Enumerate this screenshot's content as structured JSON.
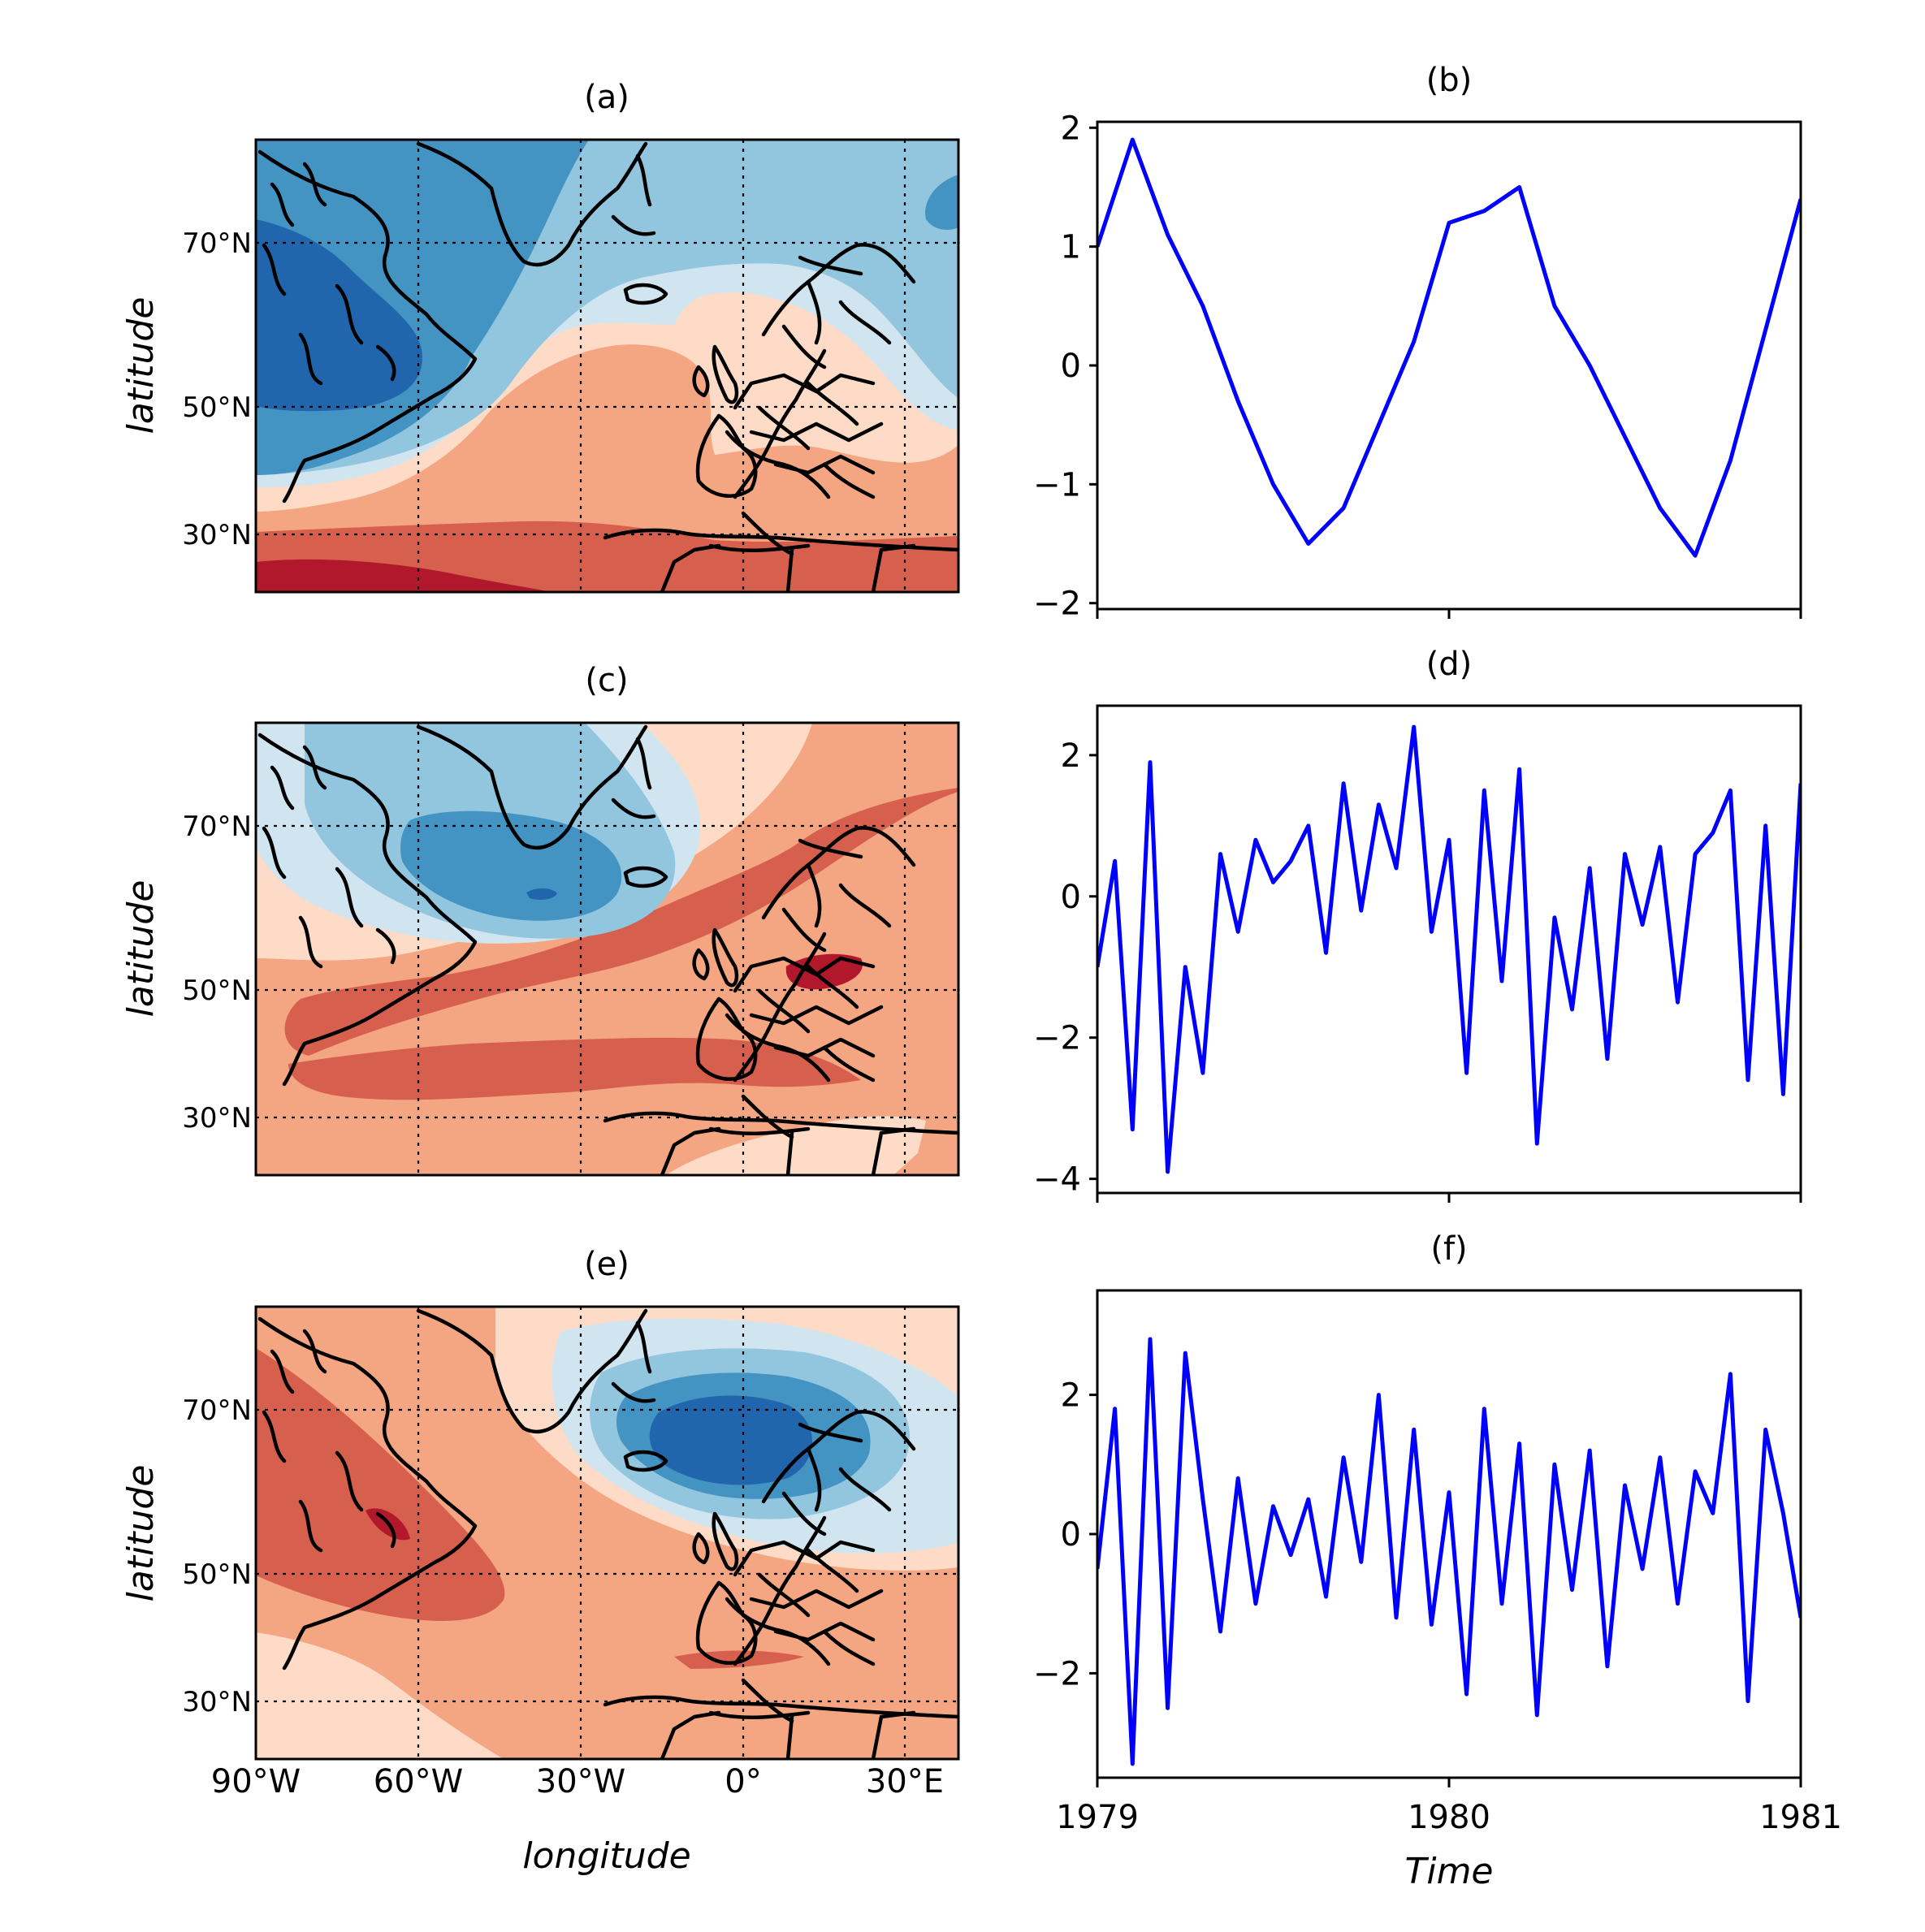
{
  "colors": {
    "series": "#0000ff",
    "diverging_scale": [
      "#08306b",
      "#2166ac",
      "#4393c3",
      "#92c5de",
      "#d1e5f0",
      "#fddbc7",
      "#f4a582",
      "#d6604d",
      "#b2182b",
      "#67001f"
    ]
  },
  "map_axes": {
    "xticks": [
      "90°W",
      "60°W",
      "30°W",
      "0°",
      "30°E"
    ],
    "yticks": [
      "70°N",
      "50°N",
      "30°N"
    ],
    "xlabel": "longitude",
    "ylabel": "latitude",
    "extent": {
      "lon": [
        -90,
        40
      ],
      "lat": [
        20,
        83
      ]
    }
  },
  "chart_data": [
    {
      "type": "heatmap",
      "title": "(a)",
      "pattern": "blue over Canada, Greenland, Labrador Sea and Scandinavia; red over subtropical Atlantic",
      "color_scale": "RdBu_r"
    },
    {
      "type": "line",
      "title": "(b)",
      "xlim": [
        1979,
        1981
      ],
      "ylim": [
        -2.05,
        2.05
      ],
      "xticks": [
        "1979",
        "1980",
        "1981"
      ],
      "yticks": [
        "2",
        "1",
        "0",
        "−1",
        "−2"
      ],
      "series": [
        {
          "x": [
            1979.0,
            1979.1,
            1979.2,
            1979.3,
            1979.4,
            1979.5,
            1979.6,
            1979.7,
            1979.8,
            1979.9,
            1980.0,
            1980.1,
            1980.2,
            1980.3,
            1980.4,
            1980.5,
            1980.6,
            1980.7,
            1980.8,
            1980.9,
            1981.0
          ],
          "values": [
            1.0,
            1.9,
            1.1,
            0.5,
            -0.3,
            -1.0,
            -1.5,
            -1.2,
            -0.5,
            0.2,
            1.2,
            1.3,
            1.5,
            0.5,
            0.0,
            -0.6,
            -1.2,
            -1.6,
            -0.8,
            0.3,
            1.4
          ]
        }
      ]
    },
    {
      "type": "heatmap",
      "title": "(c)",
      "pattern": "blue centred over southern Greenland / Iceland; red band from eastern North America across the Atlantic into Europe",
      "color_scale": "RdBu_r"
    },
    {
      "type": "line",
      "title": "(d)",
      "xlim": [
        1979,
        1981
      ],
      "ylim": [
        -4.2,
        2.7
      ],
      "xticks": [
        "1979",
        "1980",
        "1981"
      ],
      "yticks": [
        "2",
        "0",
        "−2",
        "−4"
      ],
      "series": [
        {
          "x": [
            1979.0,
            1979.05,
            1979.1,
            1979.15,
            1979.2,
            1979.25,
            1979.3,
            1979.35,
            1979.4,
            1979.45,
            1979.5,
            1979.55,
            1979.6,
            1979.65,
            1979.7,
            1979.75,
            1979.8,
            1979.85,
            1979.9,
            1979.95,
            1980.0,
            1980.05,
            1980.1,
            1980.15,
            1980.2,
            1980.25,
            1980.3,
            1980.35,
            1980.4,
            1980.45,
            1980.5,
            1980.55,
            1980.6,
            1980.65,
            1980.7,
            1980.75,
            1980.8,
            1980.85,
            1980.9,
            1980.95,
            1981.0
          ],
          "values": [
            -1.0,
            0.5,
            -3.3,
            1.9,
            -3.9,
            -1.0,
            -2.5,
            0.6,
            -0.5,
            0.8,
            0.2,
            0.5,
            1.0,
            -0.8,
            1.6,
            -0.2,
            1.3,
            0.4,
            2.4,
            -0.5,
            0.8,
            -2.5,
            1.5,
            -1.2,
            1.8,
            -3.5,
            -0.3,
            -1.6,
            0.4,
            -2.3,
            0.6,
            -0.4,
            0.7,
            -1.5,
            0.6,
            0.9,
            1.5,
            -2.6,
            1.0,
            -2.8,
            1.6
          ]
        }
      ]
    },
    {
      "type": "heatmap",
      "title": "(e)",
      "pattern": "dipole: red over northeastern Canada / Labrador, blue over the Norwegian Sea and Scandinavia",
      "color_scale": "RdBu_r"
    },
    {
      "type": "line",
      "title": "(f)",
      "xlim": [
        1979,
        1981
      ],
      "ylim": [
        -3.5,
        3.5
      ],
      "xticks": [
        "1979",
        "1980",
        "1981"
      ],
      "yticks": [
        "2",
        "0",
        "−2"
      ],
      "xlabel": "Time",
      "series": [
        {
          "x": [
            1979.0,
            1979.05,
            1979.1,
            1979.15,
            1979.2,
            1979.25,
            1979.3,
            1979.35,
            1979.4,
            1979.45,
            1979.5,
            1979.55,
            1979.6,
            1979.65,
            1979.7,
            1979.75,
            1979.8,
            1979.85,
            1979.9,
            1979.95,
            1980.0,
            1980.05,
            1980.1,
            1980.15,
            1980.2,
            1980.25,
            1980.3,
            1980.35,
            1980.4,
            1980.45,
            1980.5,
            1980.55,
            1980.6,
            1980.65,
            1980.7,
            1980.75,
            1980.8,
            1980.85,
            1980.9,
            1980.95,
            1981.0
          ],
          "values": [
            -0.5,
            1.8,
            -3.3,
            2.8,
            -2.5,
            2.6,
            0.5,
            -1.4,
            0.8,
            -1.0,
            0.4,
            -0.3,
            0.5,
            -0.9,
            1.1,
            -0.4,
            2.0,
            -1.2,
            1.5,
            -1.3,
            0.6,
            -2.3,
            1.8,
            -1.0,
            1.3,
            -2.6,
            1.0,
            -0.8,
            1.2,
            -1.9,
            0.7,
            -0.5,
            1.1,
            -1.0,
            0.9,
            0.3,
            2.3,
            -2.4,
            1.5,
            0.3,
            -1.2
          ]
        }
      ]
    }
  ]
}
